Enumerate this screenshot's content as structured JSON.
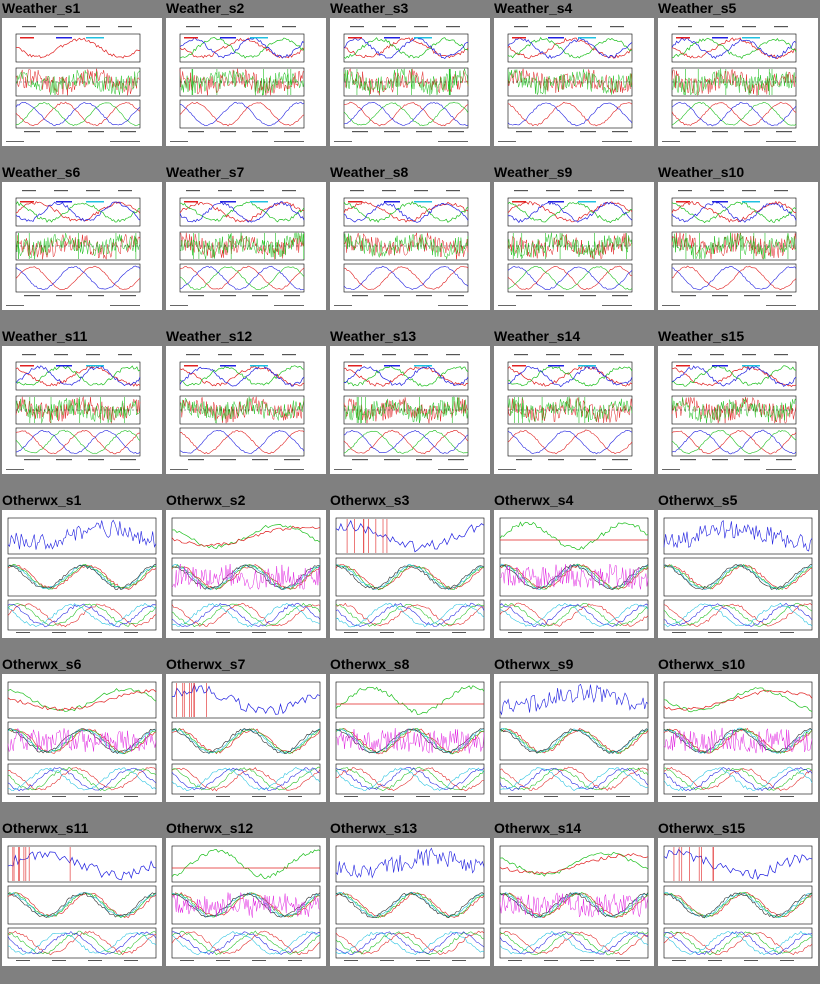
{
  "page": {
    "background": "#808080"
  },
  "rows": [
    {
      "kind": "weather",
      "items": [
        {
          "title": "Weather_s1"
        },
        {
          "title": "Weather_s2"
        },
        {
          "title": "Weather_s3"
        },
        {
          "title": "Weather_s4"
        },
        {
          "title": "Weather_s5"
        }
      ]
    },
    {
      "kind": "weather",
      "items": [
        {
          "title": "Weather_s6"
        },
        {
          "title": "Weather_s7"
        },
        {
          "title": "Weather_s8"
        },
        {
          "title": "Weather_s9"
        },
        {
          "title": "Weather_s10"
        }
      ]
    },
    {
      "kind": "weather",
      "items": [
        {
          "title": "Weather_s11"
        },
        {
          "title": "Weather_s12"
        },
        {
          "title": "Weather_s13"
        },
        {
          "title": "Weather_s14"
        },
        {
          "title": "Weather_s15"
        }
      ]
    },
    {
      "kind": "otherwx",
      "items": [
        {
          "title": "Otherwx_s1"
        },
        {
          "title": "Otherwx_s2"
        },
        {
          "title": "Otherwx_s3"
        },
        {
          "title": "Otherwx_s4"
        },
        {
          "title": "Otherwx_s5"
        }
      ]
    },
    {
      "kind": "otherwx",
      "items": [
        {
          "title": "Otherwx_s6"
        },
        {
          "title": "Otherwx_s7"
        },
        {
          "title": "Otherwx_s8"
        },
        {
          "title": "Otherwx_s9"
        },
        {
          "title": "Otherwx_s10"
        }
      ]
    },
    {
      "kind": "otherwx",
      "items": [
        {
          "title": "Otherwx_s11"
        },
        {
          "title": "Otherwx_s12"
        },
        {
          "title": "Otherwx_s13"
        },
        {
          "title": "Otherwx_s14"
        },
        {
          "title": "Otherwx_s15"
        }
      ]
    }
  ],
  "colors": {
    "red": "#e02020",
    "green": "#20c020",
    "blue": "#2020e0",
    "cyan": "#20c0e0",
    "magenta": "#e020e0",
    "black": "#000000",
    "thumb_bg": "#ffffff"
  }
}
